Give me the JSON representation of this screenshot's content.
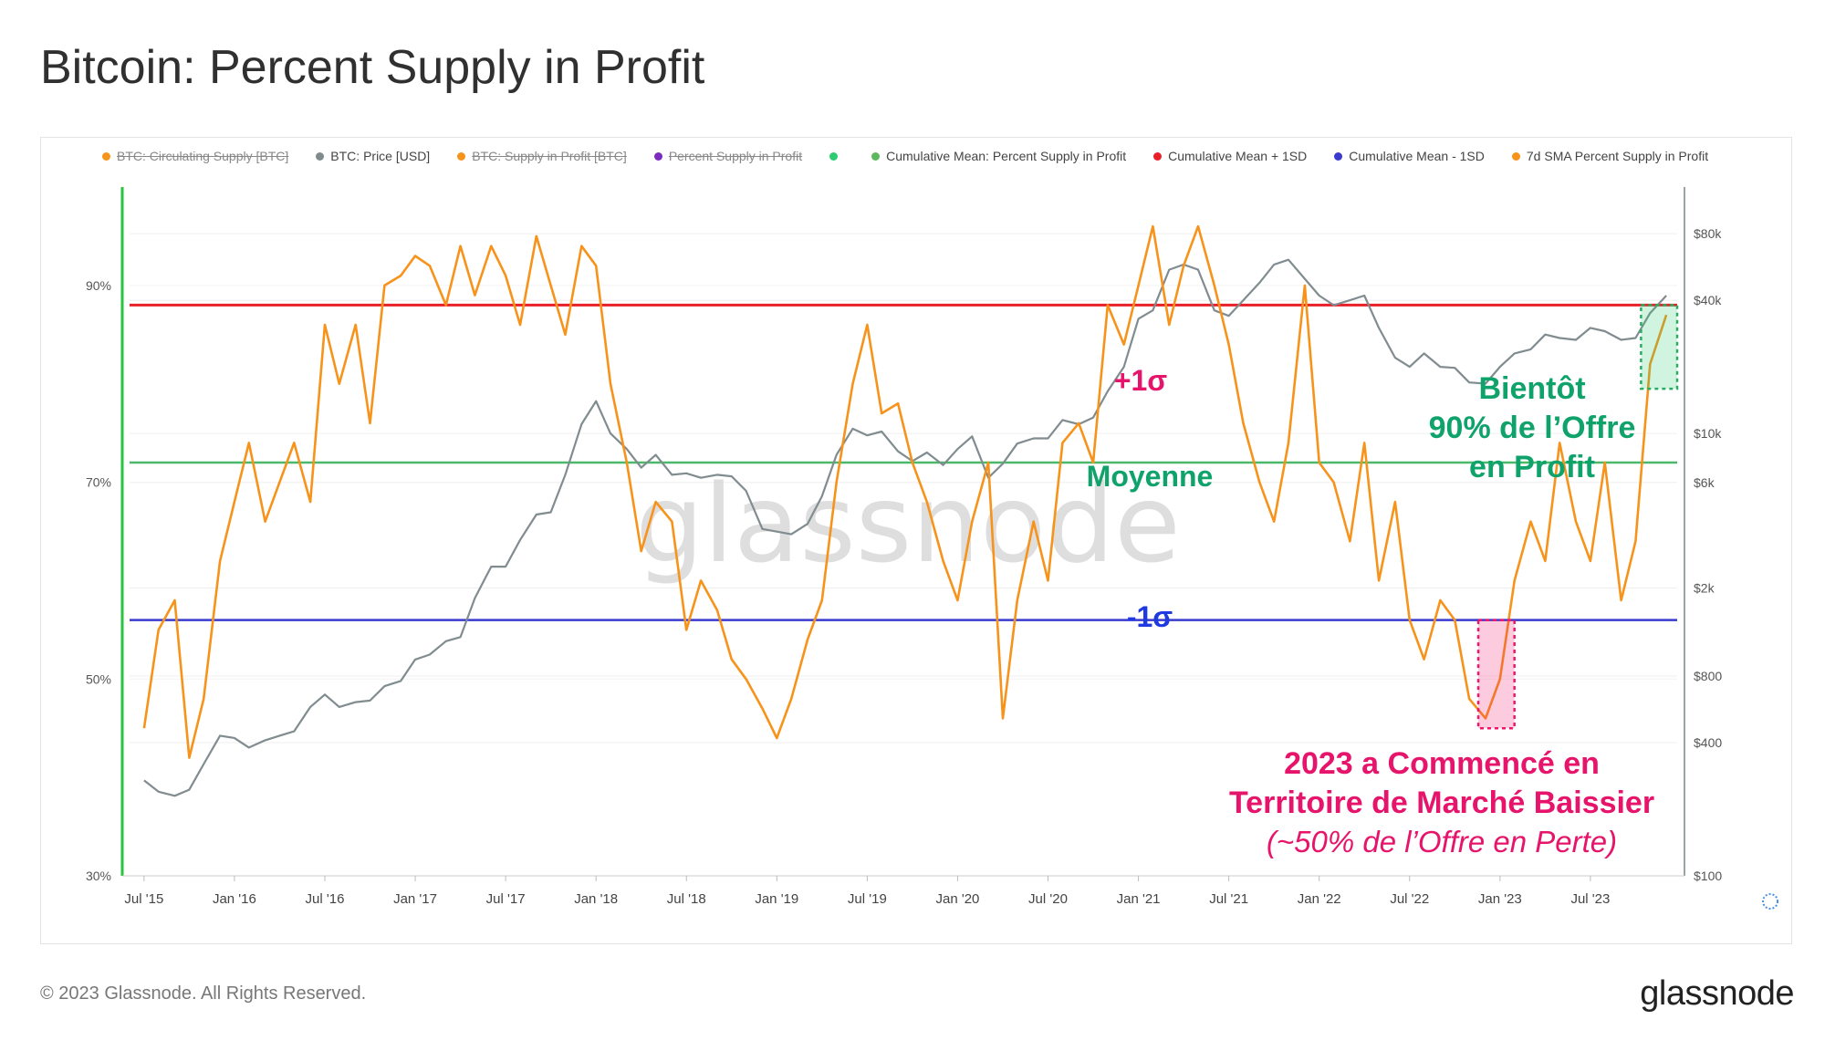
{
  "title": "Bitcoin: Percent Supply in Profit",
  "footer": "© 2023 Glassnode. All Rights Reserved.",
  "brand": "glassnode",
  "legend": [
    {
      "label": "BTC: Circulating Supply [BTC]",
      "color": "#f7931a",
      "off": true
    },
    {
      "label": "BTC: Price [USD]",
      "color": "#7f8c8d",
      "off": false
    },
    {
      "label": "BTC: Supply in Profit [BTC]",
      "color": "#f7931a",
      "off": true
    },
    {
      "label": "Percent Supply in Profit",
      "color": "#7b2cbf",
      "off": true
    },
    {
      "label": "",
      "color": "#2ecc71",
      "off": true
    },
    {
      "label": "Cumulative Mean: Percent Supply in Profit",
      "color": "#5cb85c",
      "off": false
    },
    {
      "label": "Cumulative Mean + 1SD",
      "color": "#e8202a",
      "off": false
    },
    {
      "label": "Cumulative Mean - 1SD",
      "color": "#3a3acf",
      "off": false
    },
    {
      "label": "7d SMA Percent Supply in Profit",
      "color": "#f7931a",
      "off": false
    }
  ],
  "chart_data": {
    "type": "line",
    "title": "Bitcoin: Percent Supply in Profit",
    "watermark": "glassnode",
    "x_ticks": [
      "Jul '15",
      "Jan '16",
      "Jul '16",
      "Jan '17",
      "Jul '17",
      "Jan '18",
      "Jul '18",
      "Jan '19",
      "Jul '19",
      "Jan '20",
      "Jul '20",
      "Jan '21",
      "Jul '21",
      "Jan '22",
      "Jul '22",
      "Jan '23",
      "Jul '23"
    ],
    "y_left": {
      "ticks": [
        "30%",
        "50%",
        "70%",
        "90%"
      ],
      "range": [
        30,
        100
      ]
    },
    "y_right": {
      "ticks": [
        "$100",
        "$400",
        "$800",
        "$2k",
        "$6k",
        "$10k",
        "$40k",
        "$80k"
      ],
      "values": [
        100,
        400,
        800,
        2000,
        6000,
        10000,
        40000,
        80000
      ],
      "scale": "log"
    },
    "colors": {
      "supply": "#f7931a",
      "price": "#808c8f",
      "mean": "#4cb96a",
      "plus1sd": "#e8202a",
      "minus1sd": "#3a3acf",
      "green_axis": "#27c43f",
      "pink": "#f0166b",
      "green_text": "#0fa36b",
      "blue_text": "#1e3ae0",
      "magenta_text": "#e6146b"
    },
    "levels": {
      "mean": 72.0,
      "plus1sd": 88.0,
      "minus1sd": 56.0
    },
    "series": [
      {
        "name": "7d SMA Percent Supply in Profit",
        "axis": "left",
        "x": [
          2015.5,
          2015.58,
          2015.67,
          2015.75,
          2015.83,
          2015.92,
          2016.0,
          2016.08,
          2016.17,
          2016.25,
          2016.33,
          2016.42,
          2016.5,
          2016.58,
          2016.67,
          2016.75,
          2016.83,
          2016.92,
          2017.0,
          2017.08,
          2017.17,
          2017.25,
          2017.33,
          2017.42,
          2017.5,
          2017.58,
          2017.67,
          2017.75,
          2017.83,
          2017.92,
          2018.0,
          2018.08,
          2018.17,
          2018.25,
          2018.33,
          2018.42,
          2018.5,
          2018.58,
          2018.67,
          2018.75,
          2018.83,
          2018.92,
          2019.0,
          2019.08,
          2019.17,
          2019.25,
          2019.33,
          2019.42,
          2019.5,
          2019.58,
          2019.67,
          2019.75,
          2019.83,
          2019.92,
          2020.0,
          2020.08,
          2020.17,
          2020.25,
          2020.33,
          2020.42,
          2020.5,
          2020.58,
          2020.67,
          2020.75,
          2020.83,
          2020.92,
          2021.0,
          2021.08,
          2021.17,
          2021.25,
          2021.33,
          2021.42,
          2021.5,
          2021.58,
          2021.67,
          2021.75,
          2021.83,
          2021.92,
          2022.0,
          2022.08,
          2022.17,
          2022.25,
          2022.33,
          2022.42,
          2022.5,
          2022.58,
          2022.67,
          2022.75,
          2022.83,
          2022.92,
          2023.0,
          2023.08,
          2023.17,
          2023.25,
          2023.33,
          2023.42,
          2023.5,
          2023.58,
          2023.67,
          2023.75,
          2023.83,
          2023.92
        ],
        "values": [
          45,
          55,
          58,
          42,
          48,
          62,
          68,
          74,
          66,
          70,
          74,
          68,
          86,
          80,
          86,
          76,
          90,
          91,
          93,
          92,
          88,
          94,
          89,
          94,
          91,
          86,
          95,
          90,
          85,
          94,
          92,
          80,
          72,
          63,
          68,
          66,
          55,
          60,
          57,
          52,
          50,
          47,
          44,
          48,
          54,
          58,
          70,
          80,
          86,
          77,
          78,
          72,
          68,
          62,
          58,
          66,
          72,
          46,
          58,
          66,
          60,
          74,
          76,
          72,
          88,
          84,
          90,
          96,
          86,
          92,
          96,
          90,
          84,
          76,
          70,
          66,
          74,
          90,
          72,
          70,
          64,
          74,
          60,
          68,
          56,
          52,
          58,
          56,
          48,
          46,
          50,
          60,
          66,
          62,
          74,
          66,
          62,
          72,
          58,
          64,
          82,
          87
        ]
      },
      {
        "name": "BTC: Price [USD]",
        "axis": "right",
        "x": [
          2015.5,
          2015.58,
          2015.67,
          2015.75,
          2015.83,
          2015.92,
          2016.0,
          2016.08,
          2016.17,
          2016.25,
          2016.33,
          2016.42,
          2016.5,
          2016.58,
          2016.67,
          2016.75,
          2016.83,
          2016.92,
          2017.0,
          2017.08,
          2017.17,
          2017.25,
          2017.33,
          2017.42,
          2017.5,
          2017.58,
          2017.67,
          2017.75,
          2017.83,
          2017.92,
          2018.0,
          2018.08,
          2018.17,
          2018.25,
          2018.33,
          2018.42,
          2018.5,
          2018.58,
          2018.67,
          2018.75,
          2018.83,
          2018.92,
          2019.0,
          2019.08,
          2019.17,
          2019.25,
          2019.33,
          2019.42,
          2019.5,
          2019.58,
          2019.67,
          2019.75,
          2019.83,
          2019.92,
          2020.0,
          2020.08,
          2020.17,
          2020.25,
          2020.33,
          2020.42,
          2020.5,
          2020.58,
          2020.67,
          2020.75,
          2020.83,
          2020.92,
          2021.0,
          2021.08,
          2021.17,
          2021.25,
          2021.33,
          2021.42,
          2021.5,
          2021.58,
          2021.67,
          2021.75,
          2021.83,
          2021.92,
          2022.0,
          2022.08,
          2022.17,
          2022.25,
          2022.33,
          2022.42,
          2022.5,
          2022.58,
          2022.67,
          2022.75,
          2022.83,
          2022.92,
          2023.0,
          2023.08,
          2023.17,
          2023.25,
          2023.33,
          2023.42,
          2023.5,
          2023.58,
          2023.67,
          2023.75,
          2023.83,
          2023.92
        ],
        "values": [
          270,
          240,
          230,
          245,
          320,
          430,
          420,
          380,
          410,
          430,
          450,
          580,
          660,
          580,
          610,
          620,
          720,
          760,
          950,
          1000,
          1150,
          1200,
          1800,
          2500,
          2500,
          3300,
          4300,
          4400,
          6500,
          11000,
          14000,
          10000,
          8500,
          7000,
          8000,
          6500,
          6600,
          6300,
          6500,
          6400,
          5500,
          3700,
          3600,
          3500,
          3900,
          5200,
          8000,
          10500,
          9800,
          10200,
          8300,
          7500,
          8200,
          7200,
          8500,
          9700,
          6300,
          7300,
          9000,
          9500,
          9500,
          11500,
          11000,
          11800,
          15500,
          20000,
          33000,
          36000,
          55000,
          58000,
          55000,
          36000,
          34000,
          40000,
          48000,
          58000,
          61000,
          50000,
          42000,
          38000,
          40000,
          42000,
          30000,
          22000,
          20000,
          23000,
          20000,
          19800,
          17000,
          16800,
          20000,
          23000,
          24000,
          28000,
          27000,
          26500,
          30000,
          29000,
          26500,
          27000,
          35000,
          42000
        ]
      }
    ]
  },
  "annotations": {
    "plus1sd": "+1σ",
    "mean": "Moyenne",
    "minus1sd": "-1σ",
    "soon_line1": "Bientôt",
    "soon_line2": "90% de l’Offre",
    "soon_line3": "en Profit",
    "bear_line1": "2023 a Commencé en",
    "bear_line2": "Territoire de Marché Baissier",
    "bear_line3": "(~50% de l’Offre en Perte)"
  }
}
